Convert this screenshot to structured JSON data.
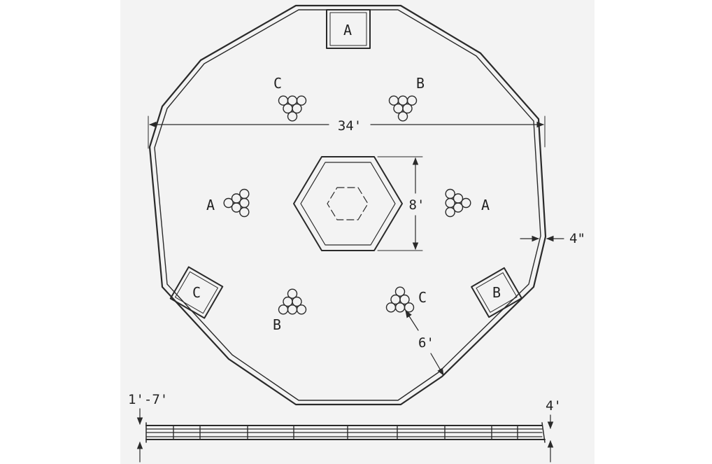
{
  "colors": {
    "ink": "#2a2a2a",
    "paper": "#f3f3f3",
    "background": "#ffffff"
  },
  "dimensions": {
    "diameter": "34'",
    "hex_width": "8'",
    "wall_thickness": "4\"",
    "spacing": "6'",
    "rail_height": "1'-7'",
    "base_height": "4'"
  },
  "stations": {
    "box_top": "A",
    "box_left": "C",
    "box_right": "B",
    "cluster_upper_left": "C",
    "cluster_upper_right": "B",
    "cluster_mid_left": "A",
    "cluster_mid_right": "A",
    "cluster_lower_left": "B",
    "cluster_lower_right": "C"
  }
}
